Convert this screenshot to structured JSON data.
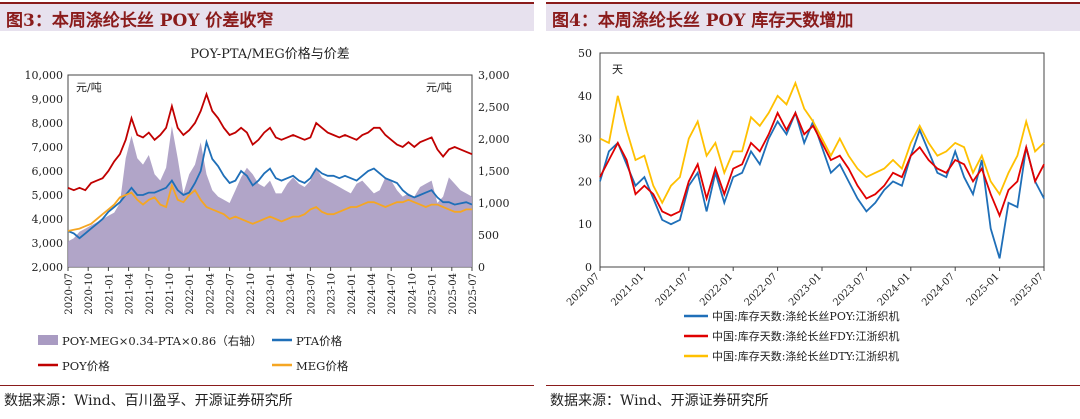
{
  "left": {
    "title": "图3：本周涤纶长丝 POY 价差收窄",
    "source": "数据来源：Wind、百川盈孚、开源证券研究所",
    "chart_data": {
      "type": "line",
      "title": "POY-PTA/MEG价格与价差",
      "unit_left": "元/吨",
      "unit_right": "元/吨",
      "ylim_left": [
        2000,
        10000
      ],
      "ylim_right": [
        0,
        3000
      ],
      "yticks_left": [
        "2,000",
        "3,000",
        "4,000",
        "5,000",
        "6,000",
        "7,000",
        "8,000",
        "9,000",
        "10,000"
      ],
      "yticks_right": [
        "0",
        "500",
        "1,000",
        "1,500",
        "2,000",
        "2,500",
        "3,000"
      ],
      "xticks": [
        "2020-07",
        "2020-10",
        "2021-01",
        "2021-04",
        "2021-07",
        "2021-10",
        "2022-01",
        "2022-04",
        "2022-07",
        "2022-10",
        "2023-01",
        "2023-04",
        "2023-07",
        "2023-10",
        "2024-01",
        "2024-04",
        "2024-07",
        "2024-10",
        "2025-01",
        "2025-04",
        "2025-07"
      ],
      "legend": "bottom",
      "series": [
        {
          "name": "POY-MEG×0.34-PTA×0.86（右轴）",
          "type": "area",
          "axis": "right",
          "color": "#a99bc2",
          "values": [
            400,
            450,
            550,
            600,
            650,
            700,
            750,
            800,
            850,
            1000,
            1700,
            2050,
            1700,
            1600,
            1750,
            1450,
            1350,
            1550,
            2200,
            1700,
            1150,
            1450,
            1600,
            1950,
            1450,
            1200,
            1100,
            1050,
            1000,
            1200,
            1400,
            1550,
            1450,
            1300,
            1250,
            1350,
            1150,
            1150,
            1300,
            1400,
            1300,
            1250,
            1350,
            1550,
            1400,
            1350,
            1300,
            1250,
            1200,
            1150,
            1300,
            1350,
            1250,
            1150,
            1200,
            1400,
            1350,
            1200,
            1100,
            1150,
            1100,
            1250,
            1300,
            1350,
            1000,
            1100,
            1400,
            1300,
            1200,
            1150,
            1100
          ]
        },
        {
          "name": "PTA价格",
          "type": "line",
          "axis": "left",
          "color": "#1f6fb8",
          "values": [
            3500,
            3400,
            3200,
            3400,
            3600,
            3800,
            4000,
            4300,
            4500,
            4700,
            5000,
            5300,
            5000,
            5000,
            5100,
            5100,
            5200,
            5300,
            5600,
            5200,
            5000,
            5100,
            5500,
            6000,
            7200,
            6500,
            6200,
            5800,
            5500,
            5600,
            6000,
            5800,
            5400,
            5600,
            5900,
            6100,
            5700,
            5600,
            5700,
            5800,
            5600,
            5500,
            5700,
            6100,
            5900,
            5800,
            5800,
            5700,
            5800,
            5700,
            5600,
            5800,
            6000,
            6100,
            5900,
            5700,
            5600,
            5500,
            5200,
            5000,
            4900,
            5000,
            5100,
            5200,
            4900,
            4700,
            4700,
            4600,
            4650,
            4700,
            4600
          ]
        },
        {
          "name": "POY价格",
          "type": "line",
          "axis": "left",
          "color": "#c00000",
          "values": [
            5300,
            5200,
            5300,
            5200,
            5500,
            5600,
            5700,
            6000,
            6400,
            6700,
            7300,
            8200,
            7500,
            7400,
            7600,
            7300,
            7500,
            7800,
            8700,
            7800,
            7500,
            7700,
            8000,
            8500,
            9200,
            8500,
            8200,
            7800,
            7500,
            7600,
            7800,
            7600,
            7100,
            7300,
            7600,
            7800,
            7400,
            7300,
            7400,
            7500,
            7400,
            7300,
            7400,
            8000,
            7800,
            7600,
            7500,
            7400,
            7500,
            7400,
            7300,
            7500,
            7600,
            7800,
            7800,
            7500,
            7300,
            7100,
            7000,
            7200,
            7000,
            7200,
            7300,
            7400,
            6900,
            6600,
            6900,
            7000,
            6900,
            6800,
            6700
          ]
        },
        {
          "name": "MEG价格",
          "type": "line",
          "axis": "left",
          "color": "#f5a623",
          "values": [
            3500,
            3550,
            3600,
            3700,
            3800,
            4000,
            4200,
            4400,
            4600,
            4900,
            5000,
            5100,
            4800,
            4600,
            4800,
            4900,
            4600,
            4500,
            5400,
            4800,
            4700,
            5000,
            5200,
            4800,
            4500,
            4400,
            4300,
            4200,
            4000,
            4100,
            4000,
            3900,
            3800,
            3900,
            4000,
            4100,
            4000,
            3900,
            4000,
            4100,
            4100,
            4200,
            4400,
            4500,
            4300,
            4200,
            4200,
            4300,
            4400,
            4500,
            4500,
            4600,
            4700,
            4700,
            4600,
            4500,
            4600,
            4700,
            4700,
            4800,
            4700,
            4600,
            4500,
            4600,
            4600,
            4500,
            4400,
            4300,
            4300,
            4400,
            4400
          ]
        }
      ]
    }
  },
  "right": {
    "title": "图4：本周涤纶长丝 POY 库存天数增加",
    "source": "数据来源：Wind、开源证券研究所",
    "chart_data": {
      "type": "line",
      "unit_left": "天",
      "ylim": [
        0,
        50
      ],
      "yticks": [
        "0",
        "10",
        "20",
        "30",
        "40",
        "50"
      ],
      "xticks": [
        "2020-07",
        "2021-01",
        "2021-07",
        "2022-01",
        "2022-07",
        "2023-01",
        "2023-07",
        "2024-01",
        "2024-07",
        "2025-01",
        "2025-07"
      ],
      "legend": "bottom",
      "series": [
        {
          "name": "中国:库存天数:涤纶长丝POY:江浙织机",
          "color": "#1f6fb8",
          "values": [
            20,
            27,
            29,
            24,
            19,
            21,
            16,
            11,
            10,
            11,
            19,
            22,
            13,
            22,
            15,
            21,
            22,
            27,
            24,
            30,
            34,
            31,
            36,
            29,
            34,
            28,
            22,
            24,
            20,
            16,
            13,
            15,
            18,
            20,
            19,
            26,
            32,
            27,
            22,
            21,
            27,
            21,
            17,
            25,
            9,
            2,
            15,
            14,
            28,
            20,
            16
          ]
        },
        {
          "name": "中国:库存天数:涤纶长丝FDY:江浙织机",
          "color": "#e00000",
          "values": [
            21,
            25,
            29,
            25,
            17,
            19,
            17,
            13,
            12,
            13,
            20,
            24,
            16,
            23,
            17,
            23,
            24,
            29,
            27,
            31,
            36,
            32,
            36,
            31,
            33,
            29,
            25,
            26,
            23,
            19,
            16,
            17,
            19,
            22,
            21,
            26,
            28,
            25,
            23,
            22,
            25,
            24,
            20,
            23,
            17,
            12,
            18,
            20,
            28,
            20,
            24
          ]
        },
        {
          "name": "中国:库存天数:涤纶长丝DTY:江浙织机",
          "color": "#ffc000",
          "values": [
            30,
            29,
            40,
            32,
            25,
            26,
            19,
            15,
            19,
            21,
            30,
            34,
            26,
            29,
            22,
            27,
            27,
            35,
            33,
            36,
            40,
            38,
            43,
            37,
            34,
            30,
            26,
            30,
            26,
            23,
            21,
            22,
            23,
            25,
            23,
            29,
            33,
            29,
            26,
            27,
            29,
            28,
            22,
            26,
            20,
            17,
            22,
            26,
            34,
            27,
            29
          ]
        }
      ]
    }
  }
}
